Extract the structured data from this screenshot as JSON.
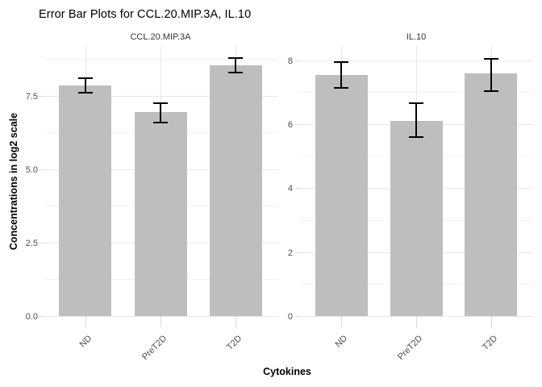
{
  "chart_data": {
    "type": "bar",
    "title": "Error Bar Plots for CCL.20.MIP.3A, IL.10",
    "xlabel": "Cytokines",
    "ylabel": "Concentrations in log2 scale",
    "categories": [
      "ND",
      "PreT2D",
      "T2D"
    ],
    "legend": false,
    "grid": true,
    "panels": [
      {
        "facet": "CCL.20.MIP.3A",
        "ylim": [
          0,
          9.2
        ],
        "yticks_major": [
          0,
          2.5,
          5,
          7.5
        ],
        "ytick_labels": [
          "0.0",
          "2.5",
          "5.0",
          "7.5"
        ],
        "yticks_minor": [
          1.25,
          3.75,
          6.25,
          8.75
        ],
        "series": [
          {
            "name": "mean",
            "values": [
              7.85,
              6.95,
              8.55
            ]
          },
          {
            "name": "error_low",
            "values": [
              7.6,
              6.6,
              8.3
            ]
          },
          {
            "name": "error_high",
            "values": [
              8.1,
              7.25,
              8.8
            ]
          }
        ]
      },
      {
        "facet": "IL.10",
        "ylim": [
          0,
          8.45
        ],
        "yticks_major": [
          0,
          2,
          4,
          6,
          8
        ],
        "ytick_labels": [
          "0",
          "2",
          "4",
          "6",
          "8"
        ],
        "yticks_minor": [
          1,
          3,
          5,
          7
        ],
        "series": [
          {
            "name": "mean",
            "values": [
              7.55,
              6.1,
              7.6
            ]
          },
          {
            "name": "error_low",
            "values": [
              7.15,
              5.6,
              7.05
            ]
          },
          {
            "name": "error_high",
            "values": [
              7.95,
              6.65,
              8.05
            ]
          }
        ]
      }
    ],
    "colors": {
      "bar_fill": "#BEBEBE",
      "grid_major": "#E8E8E8",
      "grid_minor": "#F2F2F2",
      "error_bar": "#000000",
      "tick_mark": "#D9D9D9",
      "axis_text": "#4D4D4D",
      "background": "#FFFFFF"
    }
  }
}
